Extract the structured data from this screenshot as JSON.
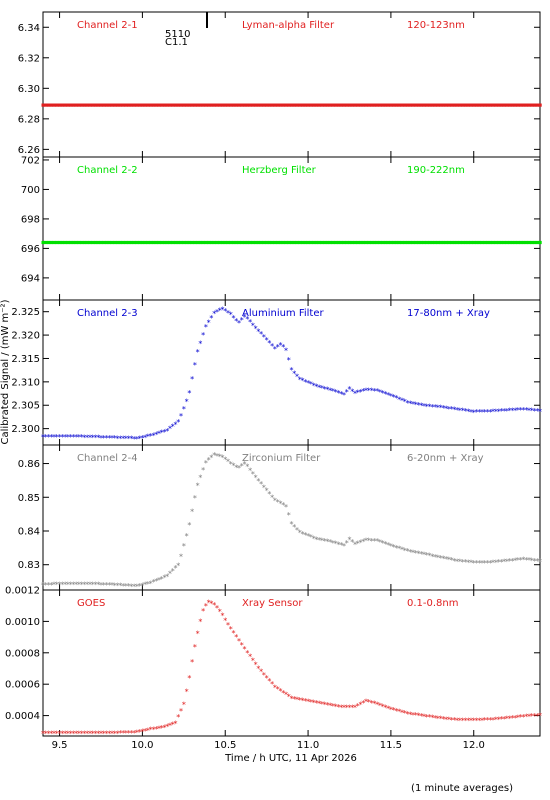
{
  "chart_data": {
    "type": "scatter",
    "xlabel": "Time / h UTC, 11 Apr 2026",
    "ylabel": "Calibrated Signal / (mW m⁻²)",
    "note": "(1 minute averages)",
    "xlim": [
      9.4,
      12.4
    ],
    "xticks": [
      {
        "v": 9.5,
        "label": "9.5"
      },
      {
        "v": 10.0,
        "label": "10.0"
      },
      {
        "v": 10.5,
        "label": "10.5"
      },
      {
        "v": 11.0,
        "label": "11.0"
      },
      {
        "v": 11.5,
        "label": "11.5"
      },
      {
        "v": 12.0,
        "label": "12.0"
      }
    ],
    "event": {
      "label": "5110",
      "sublabel": "C1.1",
      "x": 10.39
    },
    "panels": [
      {
        "channel": "Channel 2-1",
        "filter": "Lyman-alpha Filter",
        "range": "120-123nm",
        "color": "#e02020",
        "ylim": [
          6.255,
          6.35
        ],
        "yticks": [
          {
            "v": 6.26,
            "label": "6.26"
          },
          {
            "v": 6.28,
            "label": "6.28"
          },
          {
            "v": 6.3,
            "label": "6.30"
          },
          {
            "v": 6.32,
            "label": "6.32"
          },
          {
            "v": 6.34,
            "label": "6.34"
          }
        ],
        "points": [
          [
            9.4,
            6.289
          ],
          [
            12.4,
            6.289
          ]
        ]
      },
      {
        "channel": "Channel 2-2",
        "filter": "Herzberg Filter",
        "range": "190-222nm",
        "color": "#00e000",
        "ylim": [
          692.5,
          702.2
        ],
        "yticks": [
          {
            "v": 694,
            "label": "694"
          },
          {
            "v": 696,
            "label": "696"
          },
          {
            "v": 698,
            "label": "698"
          },
          {
            "v": 700,
            "label": "700"
          },
          {
            "v": 702,
            "label": "702"
          }
        ],
        "points": [
          [
            9.4,
            696.4
          ],
          [
            12.4,
            696.4
          ]
        ]
      },
      {
        "channel": "Channel 2-3",
        "filter": "Aluminium Filter",
        "range": "17-80nm + Xray",
        "color": "#0000d0",
        "ylim": [
          2.2965,
          2.3275
        ],
        "yticks": [
          {
            "v": 2.3,
            "label": "2.300"
          },
          {
            "v": 2.305,
            "label": "2.305"
          },
          {
            "v": 2.31,
            "label": "2.310"
          },
          {
            "v": 2.315,
            "label": "2.315"
          },
          {
            "v": 2.32,
            "label": "2.320"
          },
          {
            "v": 2.325,
            "label": "2.325"
          }
        ],
        "points": [
          [
            9.4,
            2.2982
          ],
          [
            9.6,
            2.2982
          ],
          [
            9.8,
            2.298
          ],
          [
            9.97,
            2.2978
          ],
          [
            10.05,
            2.2984
          ],
          [
            10.15,
            2.2995
          ],
          [
            10.22,
            2.3015
          ],
          [
            10.28,
            2.307
          ],
          [
            10.33,
            2.316
          ],
          [
            10.38,
            2.3215
          ],
          [
            10.43,
            2.3245
          ],
          [
            10.48,
            2.3255
          ],
          [
            10.53,
            2.3245
          ],
          [
            10.58,
            2.3225
          ],
          [
            10.62,
            2.324
          ],
          [
            10.68,
            2.3215
          ],
          [
            10.75,
            2.319
          ],
          [
            10.8,
            2.317
          ],
          [
            10.84,
            2.318
          ],
          [
            10.87,
            2.3165
          ],
          [
            10.9,
            2.3125
          ],
          [
            10.95,
            2.3105
          ],
          [
            11.05,
            2.309
          ],
          [
            11.15,
            2.308
          ],
          [
            11.22,
            2.3072
          ],
          [
            11.25,
            2.3085
          ],
          [
            11.28,
            2.3075
          ],
          [
            11.35,
            2.3082
          ],
          [
            11.42,
            2.308
          ],
          [
            11.5,
            2.307
          ],
          [
            11.6,
            2.3055
          ],
          [
            11.7,
            2.3048
          ],
          [
            11.8,
            2.3045
          ],
          [
            11.9,
            2.304
          ],
          [
            12.0,
            2.3035
          ],
          [
            12.1,
            2.3036
          ],
          [
            12.2,
            2.3038
          ],
          [
            12.3,
            2.304
          ],
          [
            12.4,
            2.3037
          ]
        ]
      },
      {
        "channel": "Channel 2-4",
        "filter": "Zirconium Filter",
        "range": "6-20nm + Xray",
        "color": "#808080",
        "ylim": [
          0.8225,
          0.8655
        ],
        "yticks": [
          {
            "v": 0.83,
            "label": "0.83"
          },
          {
            "v": 0.84,
            "label": "0.84"
          },
          {
            "v": 0.85,
            "label": "0.85"
          },
          {
            "v": 0.86,
            "label": "0.86"
          }
        ],
        "points": [
          [
            9.4,
            0.824
          ],
          [
            9.6,
            0.8242
          ],
          [
            9.8,
            0.824
          ],
          [
            9.97,
            0.8235
          ],
          [
            10.05,
            0.8245
          ],
          [
            10.15,
            0.8265
          ],
          [
            10.22,
            0.83
          ],
          [
            10.28,
            0.841
          ],
          [
            10.33,
            0.853
          ],
          [
            10.38,
            0.86
          ],
          [
            10.43,
            0.8625
          ],
          [
            10.48,
            0.862
          ],
          [
            10.53,
            0.86
          ],
          [
            10.58,
            0.8585
          ],
          [
            10.62,
            0.86
          ],
          [
            10.68,
            0.856
          ],
          [
            10.75,
            0.852
          ],
          [
            10.8,
            0.849
          ],
          [
            10.84,
            0.848
          ],
          [
            10.87,
            0.847
          ],
          [
            10.9,
            0.842
          ],
          [
            10.95,
            0.8395
          ],
          [
            11.05,
            0.8375
          ],
          [
            11.15,
            0.8365
          ],
          [
            11.22,
            0.8355
          ],
          [
            11.25,
            0.8375
          ],
          [
            11.28,
            0.836
          ],
          [
            11.35,
            0.8372
          ],
          [
            11.42,
            0.837
          ],
          [
            11.5,
            0.8355
          ],
          [
            11.6,
            0.834
          ],
          [
            11.7,
            0.833
          ],
          [
            11.8,
            0.832
          ],
          [
            11.9,
            0.831
          ],
          [
            12.0,
            0.8305
          ],
          [
            12.1,
            0.8305
          ],
          [
            12.2,
            0.831
          ],
          [
            12.3,
            0.8315
          ],
          [
            12.4,
            0.831
          ]
        ]
      },
      {
        "channel": "GOES",
        "filter": "Xray Sensor",
        "range": "0.1-0.8nm",
        "color": "#e02020",
        "ylim": [
          0.00027,
          0.0012
        ],
        "yticks": [
          {
            "v": 0.0004,
            "label": "0.0004"
          },
          {
            "v": 0.0006,
            "label": "0.0006"
          },
          {
            "v": 0.0008,
            "label": "0.0008"
          },
          {
            "v": 0.001,
            "label": "0.0010"
          },
          {
            "v": 0.0012,
            "label": "0.0012"
          }
        ],
        "points": [
          [
            9.4,
            0.000285
          ],
          [
            9.6,
            0.000287
          ],
          [
            9.8,
            0.000286
          ],
          [
            9.95,
            0.00029
          ],
          [
            10.0,
            0.000298
          ],
          [
            10.05,
            0.00031
          ],
          [
            10.12,
            0.00032
          ],
          [
            10.2,
            0.00035
          ],
          [
            10.25,
            0.00047
          ],
          [
            10.28,
            0.00062
          ],
          [
            10.31,
            0.0008
          ],
          [
            10.34,
            0.00096
          ],
          [
            10.37,
            0.00108
          ],
          [
            10.4,
            0.00112
          ],
          [
            10.43,
            0.00111
          ],
          [
            10.47,
            0.00106
          ],
          [
            10.52,
            0.00097
          ],
          [
            10.6,
            0.00085
          ],
          [
            10.7,
            0.0007
          ],
          [
            10.8,
            0.00058
          ],
          [
            10.9,
            0.00051
          ],
          [
            11.0,
            0.00049
          ],
          [
            11.1,
            0.00047
          ],
          [
            11.2,
            0.00045
          ],
          [
            11.28,
            0.00045
          ],
          [
            11.35,
            0.00049
          ],
          [
            11.42,
            0.00047
          ],
          [
            11.5,
            0.00044
          ],
          [
            11.6,
            0.00041
          ],
          [
            11.7,
            0.000395
          ],
          [
            11.8,
            0.00038
          ],
          [
            11.9,
            0.00037
          ],
          [
            12.0,
            0.000368
          ],
          [
            12.1,
            0.000372
          ],
          [
            12.2,
            0.00038
          ],
          [
            12.3,
            0.000392
          ],
          [
            12.4,
            0.0004
          ]
        ]
      }
    ]
  }
}
